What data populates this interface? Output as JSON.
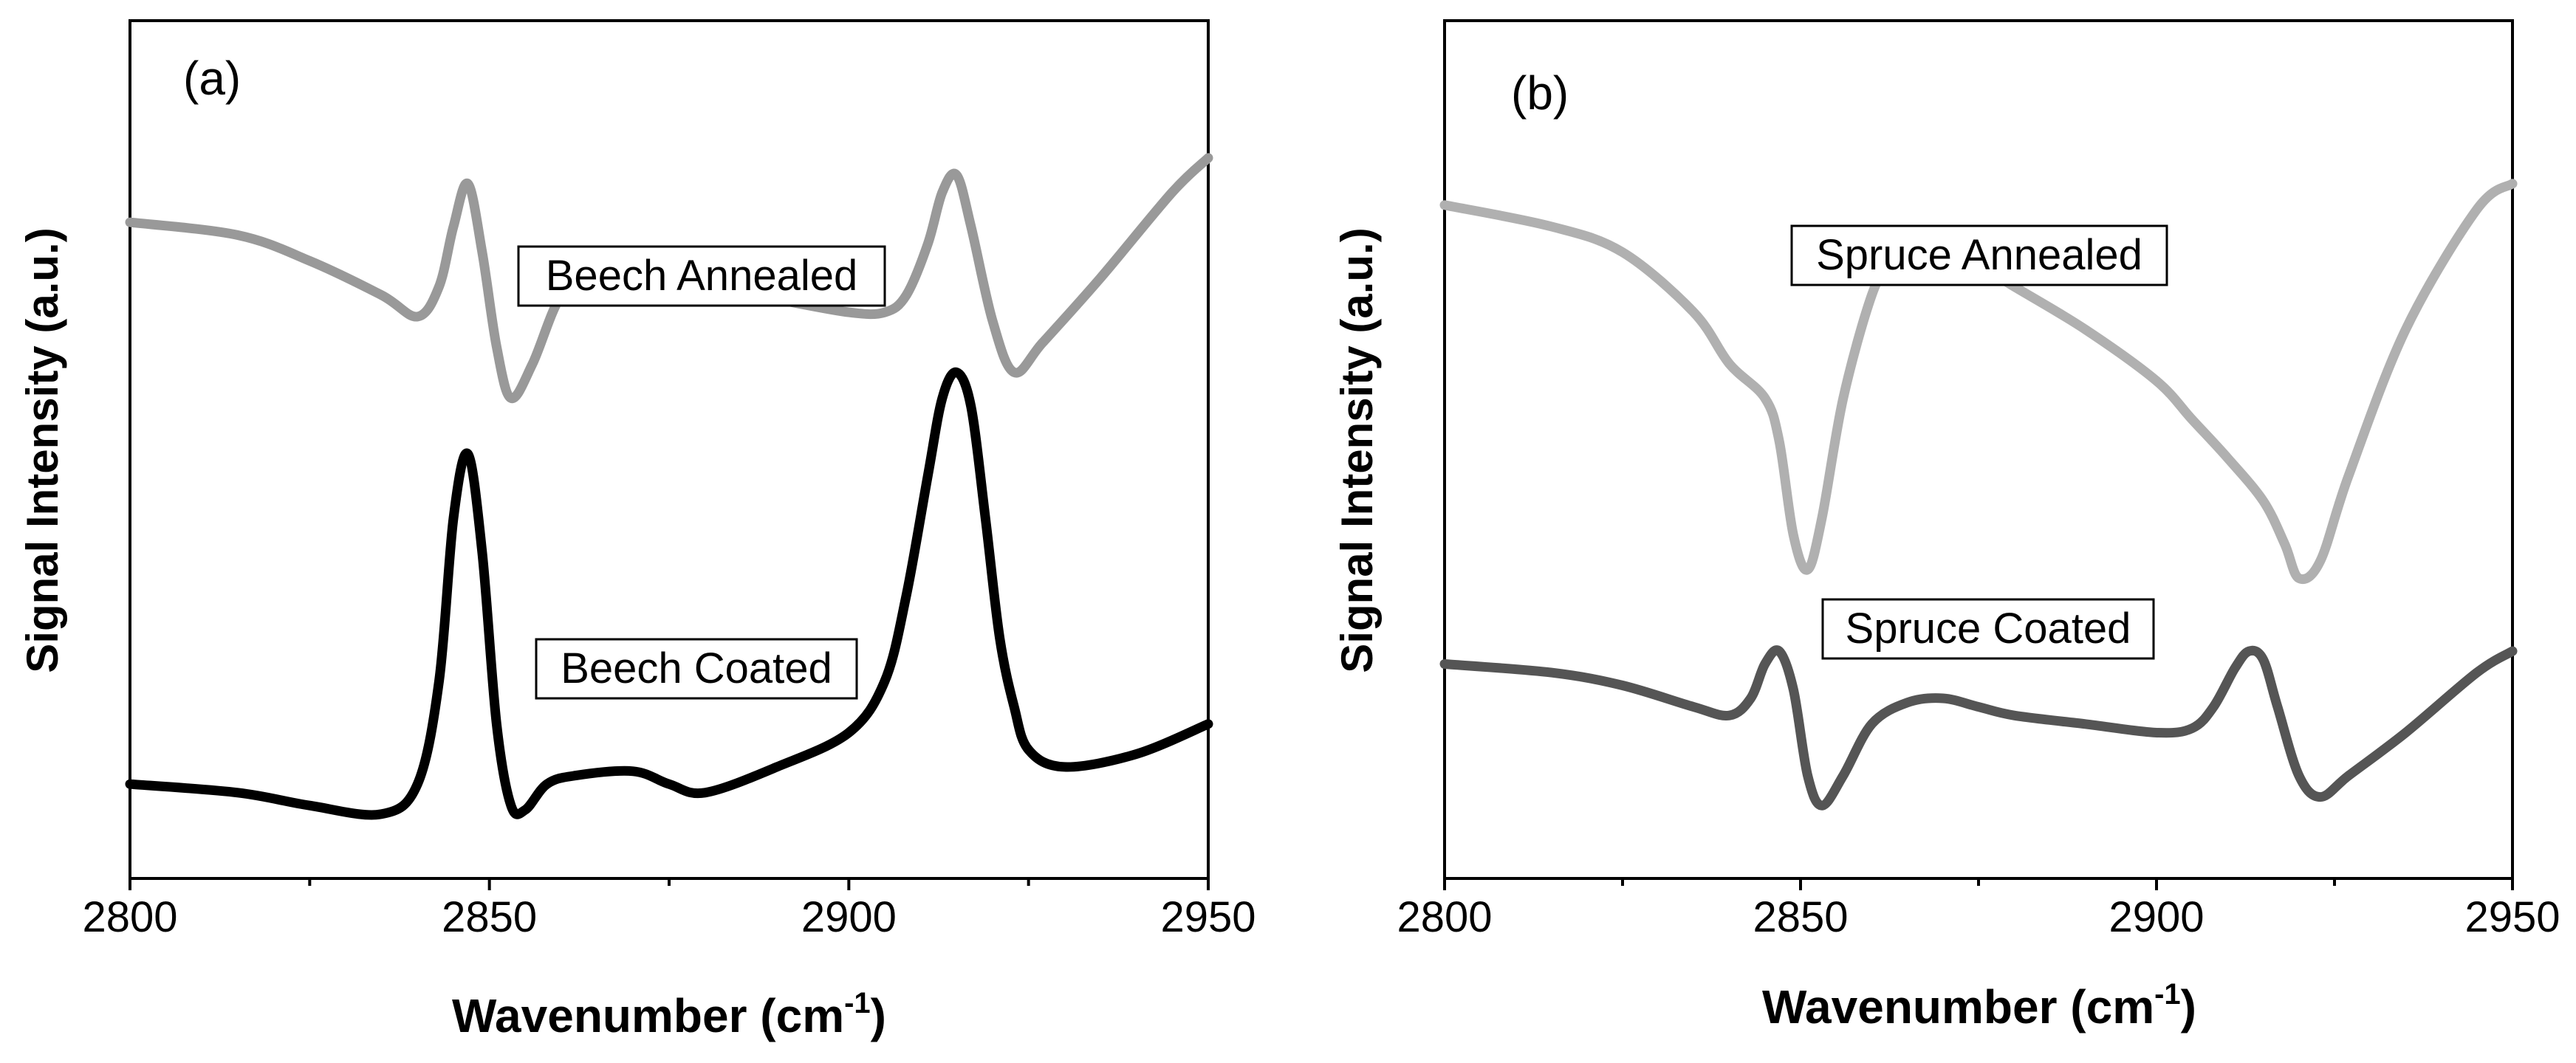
{
  "chart_data": [
    {
      "type": "line",
      "panel_label": "(a)",
      "xlabel": "Wavenumber (cm",
      "xlabel_sup": "-1",
      "xlabel_close": ")",
      "ylabel": "Signal Intensity (a.u.)",
      "xlim": [
        2800,
        2950
      ],
      "xticks": [
        2800,
        2850,
        2900,
        2950
      ],
      "y_ticks_shown": false,
      "grid": false,
      "series": [
        {
          "name": "Beech Annealed",
          "color": "#999999",
          "x": [
            2800,
            2815,
            2825,
            2835,
            2840,
            2843,
            2845,
            2847,
            2849,
            2851,
            2853,
            2856,
            2860,
            2865,
            2870,
            2875,
            2880,
            2890,
            2900,
            2905,
            2908,
            2911,
            2913,
            2915,
            2917,
            2920,
            2923,
            2927,
            2935,
            2945,
            2950
          ],
          "y": [
            0.765,
            0.75,
            0.72,
            0.68,
            0.655,
            0.69,
            0.76,
            0.81,
            0.73,
            0.62,
            0.56,
            0.6,
            0.68,
            0.715,
            0.718,
            0.71,
            0.69,
            0.675,
            0.66,
            0.66,
            0.68,
            0.74,
            0.8,
            0.82,
            0.76,
            0.65,
            0.59,
            0.625,
            0.7,
            0.8,
            0.84
          ]
        },
        {
          "name": "Beech Coated",
          "color": "#000000",
          "x": [
            2800,
            2815,
            2825,
            2835,
            2840,
            2843,
            2845,
            2847,
            2849,
            2851,
            2853,
            2855,
            2858,
            2862,
            2870,
            2875,
            2880,
            2890,
            2900,
            2905,
            2908,
            2911,
            2913,
            2915,
            2917,
            2919,
            2921,
            2923,
            2925,
            2930,
            2940,
            2950
          ],
          "y": [
            0.11,
            0.1,
            0.085,
            0.075,
            0.11,
            0.23,
            0.42,
            0.495,
            0.38,
            0.18,
            0.085,
            0.08,
            0.11,
            0.12,
            0.125,
            0.11,
            0.1,
            0.13,
            0.17,
            0.23,
            0.33,
            0.47,
            0.56,
            0.59,
            0.55,
            0.42,
            0.28,
            0.2,
            0.15,
            0.13,
            0.145,
            0.18
          ]
        }
      ],
      "annotations": [
        "Beech Annealed",
        "Beech Coated"
      ]
    },
    {
      "type": "line",
      "panel_label": "(b)",
      "xlabel": "Wavenumber (cm",
      "xlabel_sup": "-1",
      "xlabel_close": ")",
      "ylabel": "Signal Intensity (a.u.)",
      "xlim": [
        2800,
        2950
      ],
      "xticks": [
        2800,
        2850,
        2900,
        2950
      ],
      "y_ticks_shown": false,
      "grid": false,
      "series": [
        {
          "name": "Spruce Annealed",
          "color": "#b0b0b0",
          "x": [
            2800,
            2815,
            2825,
            2835,
            2840,
            2845,
            2847,
            2849,
            2851,
            2853,
            2856,
            2860,
            2863,
            2865,
            2870,
            2875,
            2880,
            2890,
            2900,
            2905,
            2910,
            2915,
            2918,
            2920,
            2923,
            2927,
            2935,
            2945,
            2950
          ],
          "y": [
            0.785,
            0.76,
            0.73,
            0.66,
            0.6,
            0.56,
            0.51,
            0.4,
            0.36,
            0.42,
            0.56,
            0.68,
            0.725,
            0.73,
            0.73,
            0.715,
            0.69,
            0.64,
            0.58,
            0.535,
            0.49,
            0.44,
            0.39,
            0.35,
            0.37,
            0.47,
            0.64,
            0.78,
            0.81
          ]
        },
        {
          "name": "Spruce Coated",
          "color": "#555555",
          "x": [
            2800,
            2815,
            2825,
            2835,
            2840,
            2843,
            2845,
            2847,
            2849,
            2851,
            2853,
            2856,
            2860,
            2865,
            2870,
            2875,
            2880,
            2890,
            2900,
            2905,
            2908,
            2911,
            2913,
            2915,
            2917,
            2920,
            2923,
            2927,
            2935,
            2945,
            2950
          ],
          "y": [
            0.25,
            0.24,
            0.225,
            0.2,
            0.19,
            0.21,
            0.25,
            0.265,
            0.22,
            0.12,
            0.085,
            0.12,
            0.18,
            0.205,
            0.21,
            0.2,
            0.19,
            0.18,
            0.17,
            0.175,
            0.2,
            0.245,
            0.265,
            0.255,
            0.2,
            0.12,
            0.095,
            0.12,
            0.17,
            0.24,
            0.265
          ]
        }
      ],
      "annotations": [
        "Spruce Annealed",
        "Spruce Coated"
      ]
    }
  ]
}
